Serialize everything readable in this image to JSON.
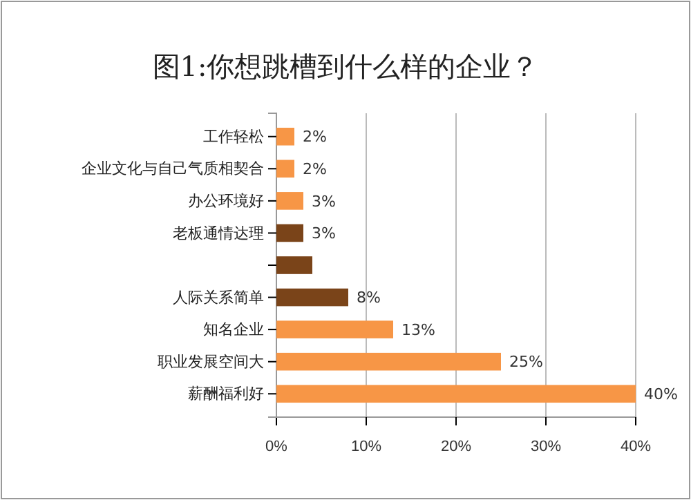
{
  "chart_data": {
    "type": "bar",
    "orientation": "horizontal",
    "title": "图1:你想跳槽到什么样的企业？",
    "categories": [
      "工作轻松",
      "企业文化与自己气质相契合",
      "办公环境好",
      "老板通情达理",
      null,
      "人际关系简单",
      "知名企业",
      "职业发展空间大",
      "薪酬福利好"
    ],
    "values": [
      2,
      2,
      3,
      3,
      4,
      8,
      13,
      25,
      40
    ],
    "value_labels": [
      "2%",
      "2%",
      "3%",
      "3%",
      null,
      "8%",
      "13%",
      "25%",
      "40%"
    ],
    "colors": [
      "#f79646",
      "#f79646",
      "#f79646",
      "#7a4419",
      "#7a4419",
      "#7a4419",
      "#f79646",
      "#f79646",
      "#f79646"
    ],
    "xlim": [
      0,
      40
    ],
    "xticks": [
      {
        "value": 0,
        "label": "0%"
      },
      {
        "value": 10,
        "label": "10%"
      },
      {
        "value": 20,
        "label": "20%"
      },
      {
        "value": 30,
        "label": "30%"
      },
      {
        "value": 40,
        "label": "40%"
      }
    ],
    "grid": "x"
  }
}
